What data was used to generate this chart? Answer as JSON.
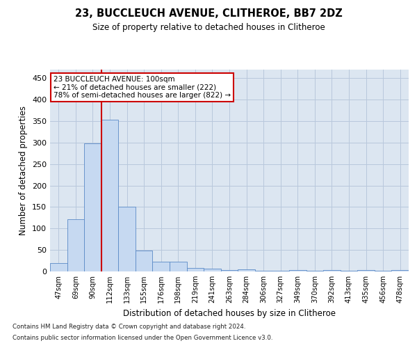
{
  "title1": "23, BUCCLEUCH AVENUE, CLITHEROE, BB7 2DZ",
  "title2": "Size of property relative to detached houses in Clitheroe",
  "xlabel": "Distribution of detached houses by size in Clitheroe",
  "ylabel": "Number of detached properties",
  "footnote1": "Contains HM Land Registry data © Crown copyright and database right 2024.",
  "footnote2": "Contains public sector information licensed under the Open Government Licence v3.0.",
  "categories": [
    "47sqm",
    "69sqm",
    "90sqm",
    "112sqm",
    "133sqm",
    "155sqm",
    "176sqm",
    "198sqm",
    "219sqm",
    "241sqm",
    "263sqm",
    "284sqm",
    "306sqm",
    "327sqm",
    "349sqm",
    "370sqm",
    "392sqm",
    "413sqm",
    "435sqm",
    "456sqm",
    "478sqm"
  ],
  "values": [
    20,
    122,
    298,
    353,
    150,
    49,
    22,
    22,
    8,
    6,
    3,
    5,
    2,
    2,
    3,
    1,
    3,
    1,
    3,
    1,
    3
  ],
  "bar_color": "#c6d9f1",
  "bar_edge_color": "#5a8ac6",
  "annotation_line1": "23 BUCCLEUCH AVENUE: 100sqm",
  "annotation_line2": "← 21% of detached houses are smaller (222)",
  "annotation_line3": "78% of semi-detached houses are larger (822) →",
  "annotation_box_color": "#ffffff",
  "annotation_box_edge": "#cc0000",
  "red_line_color": "#cc0000",
  "red_line_x": 2.5,
  "ylim": [
    0,
    470
  ],
  "yticks": [
    0,
    50,
    100,
    150,
    200,
    250,
    300,
    350,
    400,
    450
  ],
  "background_color": "#ffffff",
  "plot_bg_color": "#dce6f1",
  "grid_color": "#b8c8dc"
}
